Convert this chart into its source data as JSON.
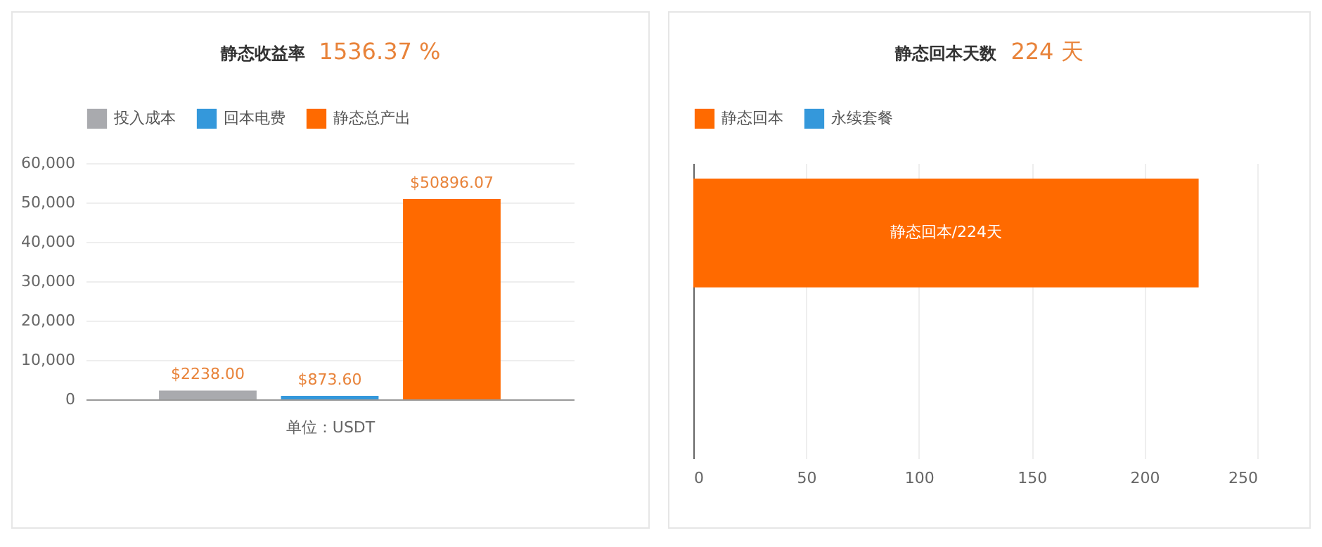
{
  "chart_data": [
    {
      "type": "bar",
      "title": "静态收益率",
      "subtitle": "1536.37 %",
      "xlabel": "单位：USDT",
      "categories": [
        null
      ],
      "series": [
        {
          "name": "投入成本",
          "color": "#a9aaae",
          "values": [
            2238.0
          ],
          "value_labels": [
            "$2238.00"
          ]
        },
        {
          "name": "回本电费",
          "color": "#3498db",
          "values": [
            873.6
          ],
          "value_labels": [
            "$873.60"
          ]
        },
        {
          "name": "静态总产出",
          "color": "#ff6a00",
          "values": [
            50896.07
          ],
          "value_labels": [
            "$50896.07"
          ]
        }
      ],
      "ylim": [
        0,
        60000
      ],
      "yticks": [
        0,
        {
          "value": 10000,
          "label": "10,000"
        },
        {
          "value": 20000,
          "label": "20,000"
        },
        {
          "value": 30000,
          "label": "30,000"
        },
        {
          "value": 40000,
          "label": "40,000"
        },
        {
          "value": 50000,
          "label": "50,000"
        },
        {
          "value": 60000,
          "label": "60,000"
        }
      ],
      "grid": "y",
      "legend": "top"
    },
    {
      "type": "bar",
      "orientation": "horizontal",
      "title": "静态回本天数",
      "subtitle": "224 天",
      "categories": [
        null,
        null
      ],
      "series": [
        {
          "name": "静态回本",
          "color": "#ff6a00",
          "values": [
            224,
            null
          ],
          "value_labels": [
            "静态回本/224天",
            null
          ]
        },
        {
          "name": "永续套餐",
          "color": "#3498db",
          "values": [
            null,
            null
          ]
        }
      ],
      "xlim": [
        0,
        250
      ],
      "xticks": [
        0,
        50,
        100,
        150,
        200,
        250
      ],
      "grid": "x",
      "legend": "top"
    }
  ]
}
